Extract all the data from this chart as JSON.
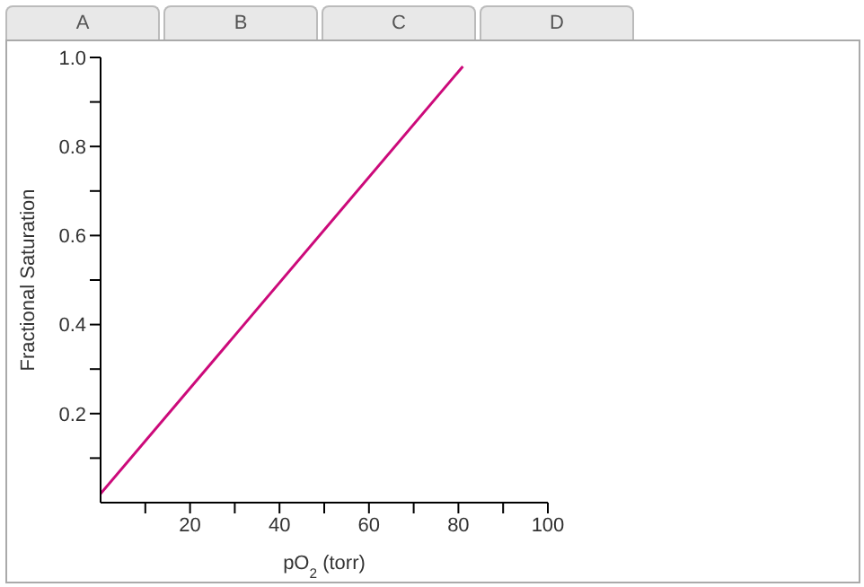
{
  "chart_data": {
    "type": "line",
    "xlabel": "pO$_{2}$ (torr)",
    "ylabel": "Fractional Saturation",
    "annotations": [
      "A",
      "B",
      "C",
      "D"
    ],
    "x": [
      0,
      81
    ],
    "series": [
      {
        "color": "#cc0a7a",
        "values": [
          0.02,
          0.98
        ]
      }
    ],
    "xlim": [
      0,
      100
    ],
    "xticks": [
      {
        "value": 10,
        "label": null
      },
      20,
      {
        "value": 30,
        "label": null
      },
      40,
      {
        "value": 50,
        "label": null
      },
      60,
      {
        "value": 70,
        "label": null
      },
      80,
      {
        "value": 90,
        "label": null
      },
      100
    ],
    "ylim": [
      0,
      1
    ],
    "yticks": [
      {
        "value": 0.1,
        "label": null
      },
      0.2,
      {
        "value": 0.3,
        "label": null
      },
      0.4,
      {
        "value": 0.5,
        "label": null
      },
      0.6,
      {
        "value": 0.7,
        "label": null
      },
      0.8,
      {
        "value": 0.9,
        "label": null
      },
      "1.0"
    ],
    "grid": false,
    "legend": false,
    "marker": "none",
    "line_style": "solid"
  }
}
